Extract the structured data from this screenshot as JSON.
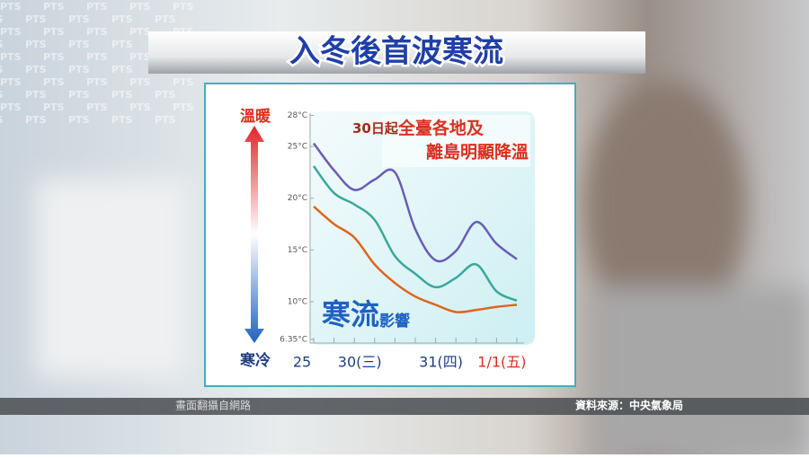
{
  "header": {
    "title": "入冬後首波寒流",
    "watermark": "PTS"
  },
  "footer": {
    "left": "畫面翻攝自網路",
    "right": "資料來源：中央氣象局"
  },
  "chart_data": {
    "type": "line",
    "warm_label": "溫暖",
    "cold_label": "寒冷",
    "annotations": [
      {
        "small": "30日起",
        "large": "全臺各地及"
      },
      {
        "large": "離島明顯降溫"
      },
      {
        "large": "寒流",
        "small": "影響"
      }
    ],
    "categories": [
      "25",
      null,
      "30(三)",
      null,
      null,
      null,
      "31(四)",
      null,
      null,
      "1/1(五)",
      null
    ],
    "series": [
      {
        "color": "#6a5bb5",
        "values": [
          25.3,
          22.7,
          20.8,
          21.8,
          22.5,
          17.0,
          14.0,
          14.9,
          17.7,
          15.6,
          14.1
        ]
      },
      {
        "color": "#3aa89a",
        "values": [
          23.1,
          20.5,
          19.4,
          17.9,
          14.4,
          12.7,
          11.4,
          12.3,
          13.6,
          11.0,
          10.1
        ]
      },
      {
        "color": "#e0641c",
        "values": [
          19.2,
          17.5,
          16.2,
          13.6,
          11.8,
          10.5,
          9.7,
          9.0,
          9.2,
          9.5,
          9.7
        ]
      }
    ],
    "ylim": [
      6.35,
      28
    ],
    "yticks": [
      {
        "value": 28,
        "label": "28°C"
      },
      {
        "value": 25,
        "label": "25°C"
      },
      {
        "value": 20,
        "label": "20°C"
      },
      {
        "value": 15,
        "label": "15°C"
      },
      {
        "value": 10,
        "label": "10°C"
      },
      {
        "value": 6.35,
        "label": "6.35°C"
      }
    ]
  }
}
